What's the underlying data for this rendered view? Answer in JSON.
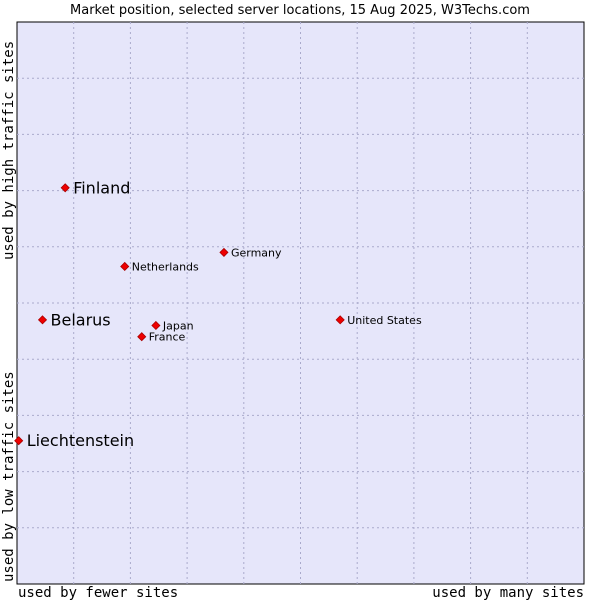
{
  "chart_data": {
    "type": "scatter",
    "title": "Market position, selected server locations, 15 Aug 2025, W3Techs.com",
    "xlabel_left": "used by fewer sites",
    "xlabel_right": "used by many sites",
    "ylabel_top": "used by high traffic sites",
    "ylabel_bottom": "used by low traffic sites",
    "xlim": [
      0,
      100
    ],
    "ylim": [
      0,
      100
    ],
    "grid": true,
    "colors": {
      "plot_bg": "#e6e6fa",
      "point": "#ee0000",
      "point_edge": "#aa0000",
      "grid": "#aaaacc"
    },
    "points": [
      {
        "name": "Finland",
        "x": 8.5,
        "y": 70.5,
        "emphasis": true
      },
      {
        "name": "Belarus",
        "x": 4.5,
        "y": 47.0,
        "emphasis": true
      },
      {
        "name": "Liechtenstein",
        "x": 0.3,
        "y": 25.5,
        "emphasis": true
      },
      {
        "name": "Germany",
        "x": 36.5,
        "y": 59.0,
        "emphasis": false
      },
      {
        "name": "Netherlands",
        "x": 19.0,
        "y": 56.5,
        "emphasis": false
      },
      {
        "name": "Japan",
        "x": 24.5,
        "y": 46.0,
        "emphasis": false
      },
      {
        "name": "France",
        "x": 22.0,
        "y": 44.0,
        "emphasis": false
      },
      {
        "name": "United States",
        "x": 57.0,
        "y": 47.0,
        "emphasis": false
      }
    ]
  }
}
